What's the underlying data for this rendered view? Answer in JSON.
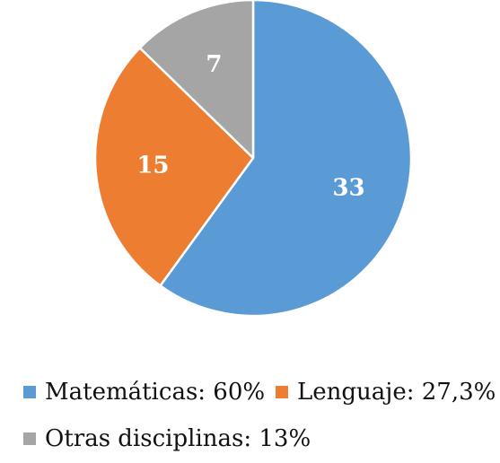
{
  "chart_data": {
    "type": "pie",
    "categories": [
      "Matemáticas",
      "Lenguaje",
      "Otras disciplinas"
    ],
    "values": [
      33,
      15,
      7
    ],
    "data_labels": [
      "33",
      "15",
      "7"
    ],
    "colors": [
      "#5B9BD5",
      "#ED7D31",
      "#A5A5A5"
    ],
    "label_color": "#ffffff",
    "legend_placement": "bottom",
    "legend": [
      {
        "text": "Matemáticas: 60%",
        "color": "#5B9BD5"
      },
      {
        "text": "Lenguaje: 27,3%",
        "color": "#ED7D31"
      },
      {
        "text": "Otras disciplinas: 13%",
        "color": "#A5A5A5"
      }
    ]
  }
}
